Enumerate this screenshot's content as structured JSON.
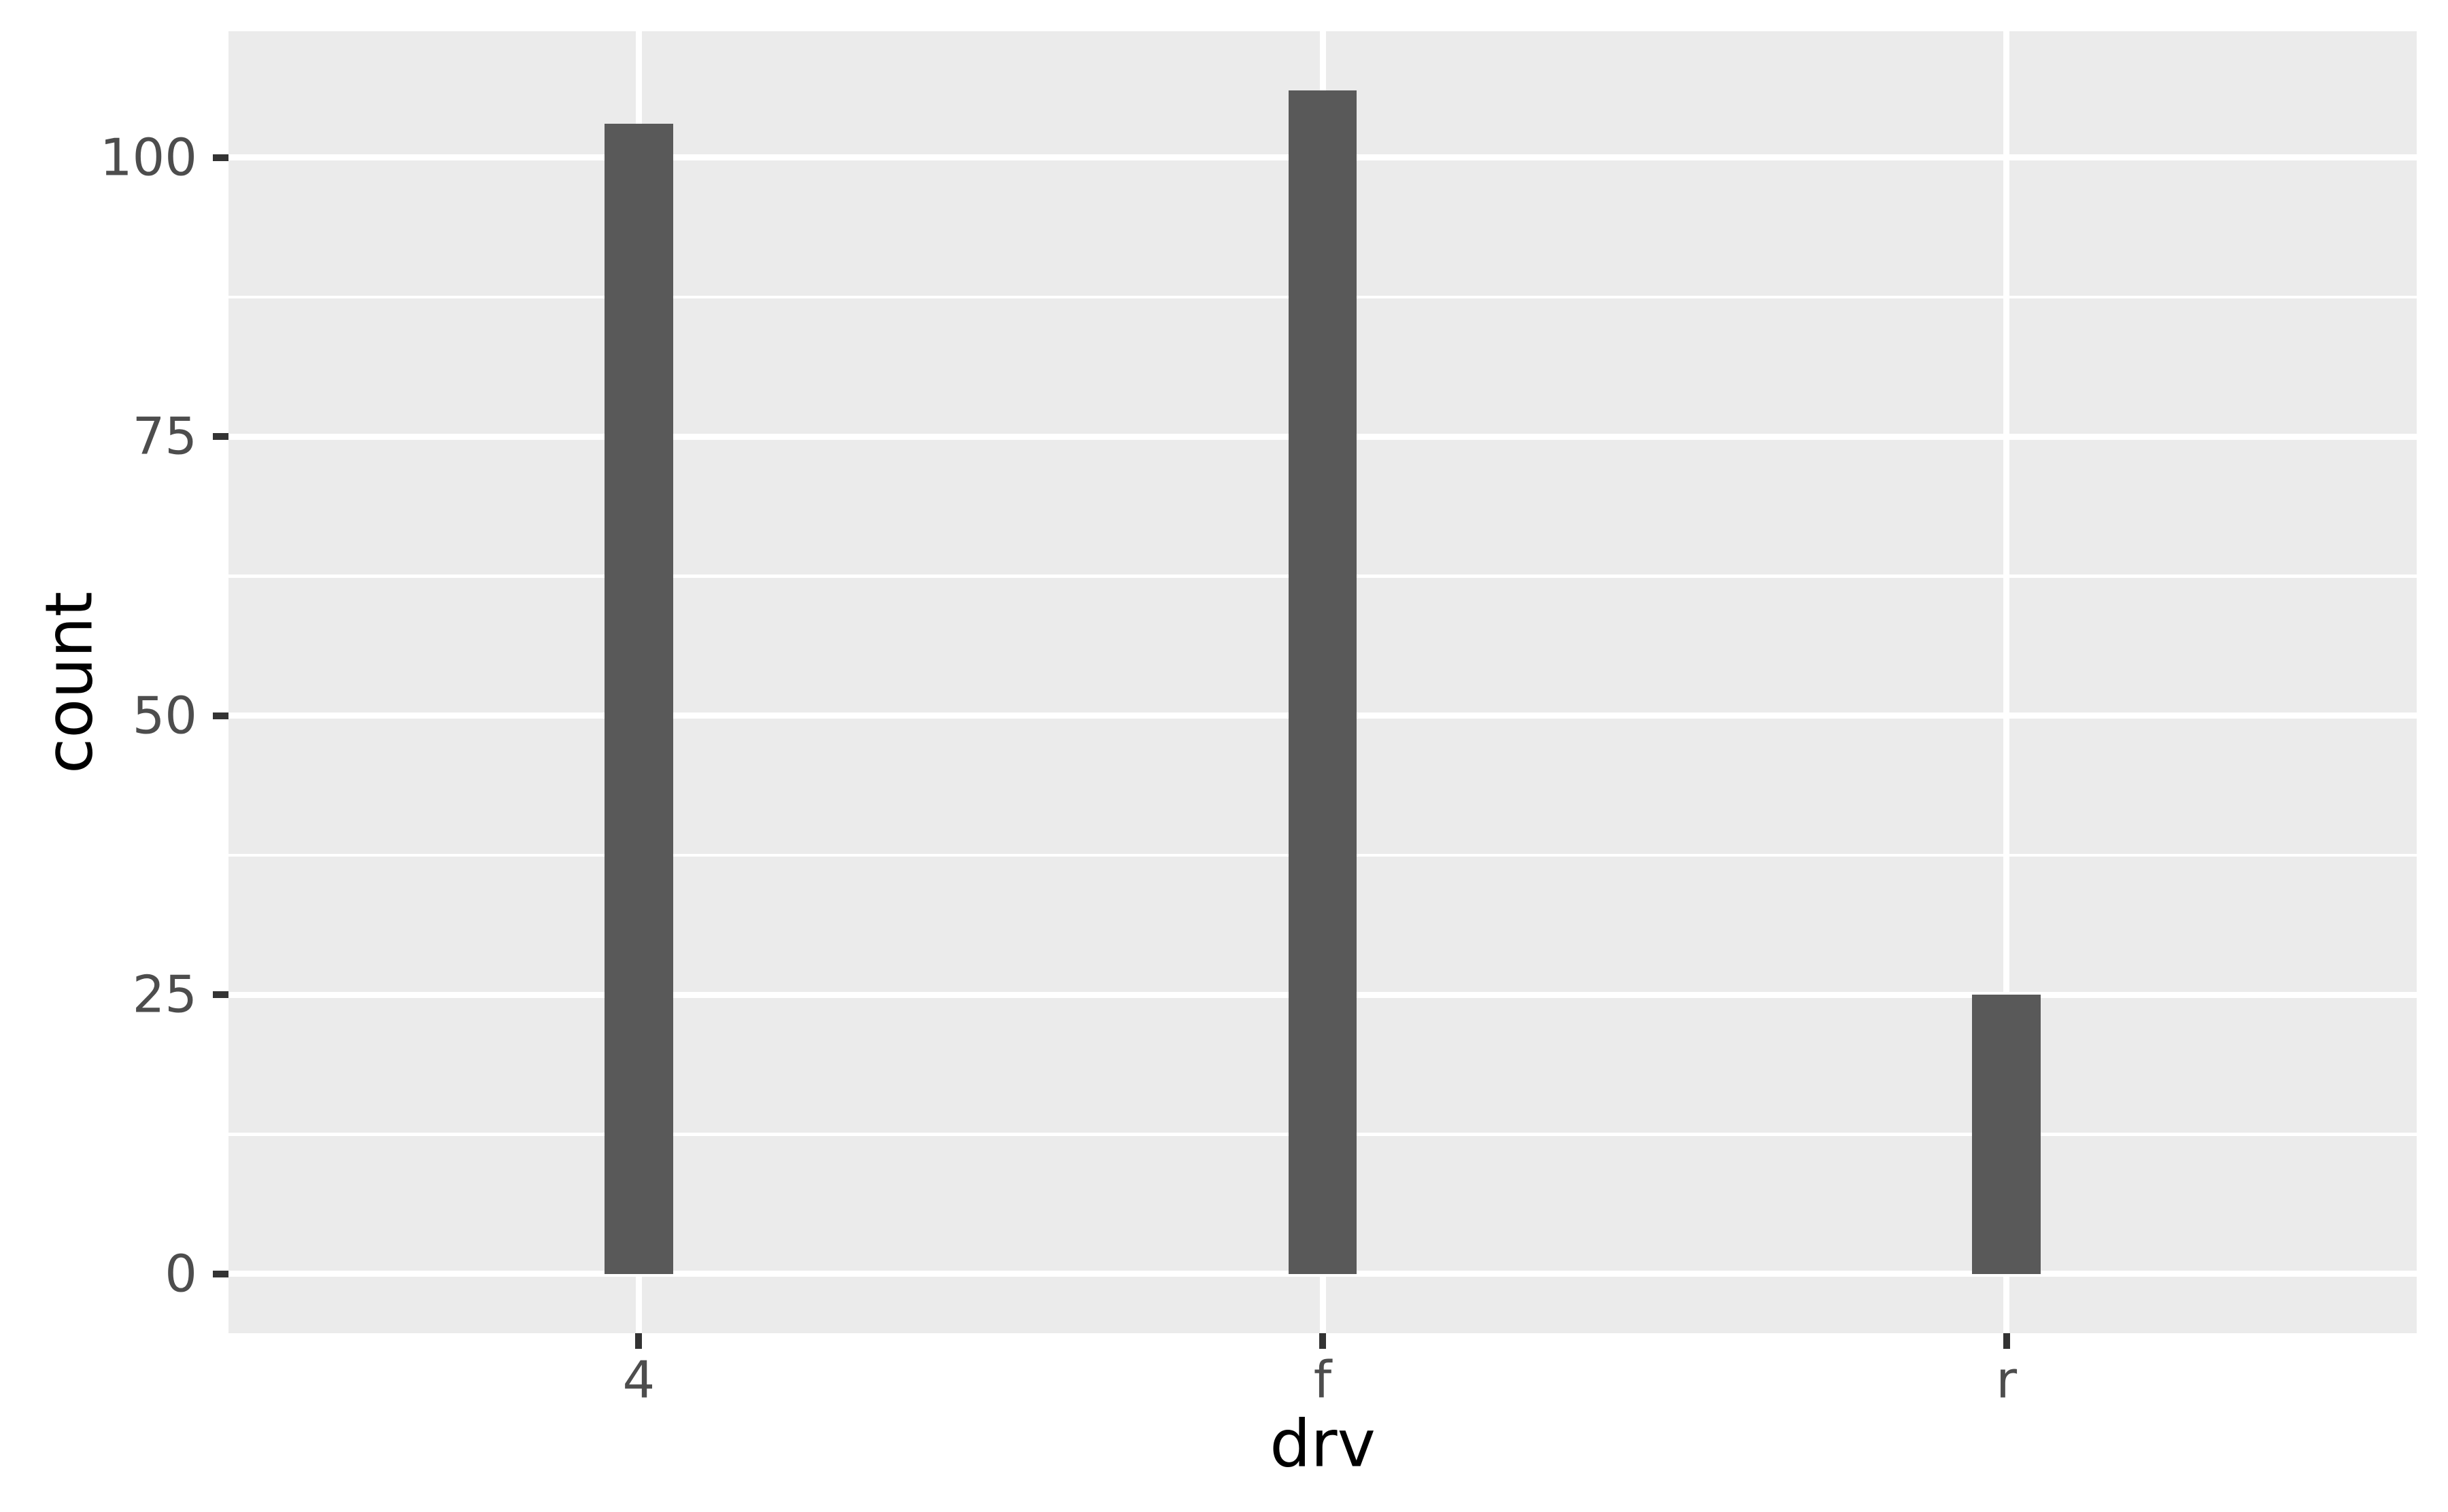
{
  "chart_data": {
    "type": "bar",
    "title": "",
    "categories": [
      "4",
      "f",
      "r"
    ],
    "values": [
      103,
      106,
      25
    ],
    "xlabel": "drv",
    "ylabel": "count",
    "y_major_ticks": [
      0,
      25,
      50,
      75,
      100
    ],
    "y_tick_labels": [
      "0",
      "25",
      "50",
      "75",
      "100"
    ],
    "y_minor_ticks": [
      12.5,
      37.5,
      62.5,
      87.5
    ],
    "ylim": [
      -5.3,
      111.3
    ],
    "bar_width_units": 0.1,
    "x_band_expansion": 0.6,
    "legend_position": "none",
    "grid": "on",
    "colors": {
      "bar_fill": "#595959",
      "panel_background": "#EBEBEB",
      "gridline": "#FFFFFF",
      "tick_label": "#4D4D4D",
      "tick_mark": "#333333",
      "axis_title": "#000000",
      "figure_background": "#FFFFFF"
    }
  }
}
